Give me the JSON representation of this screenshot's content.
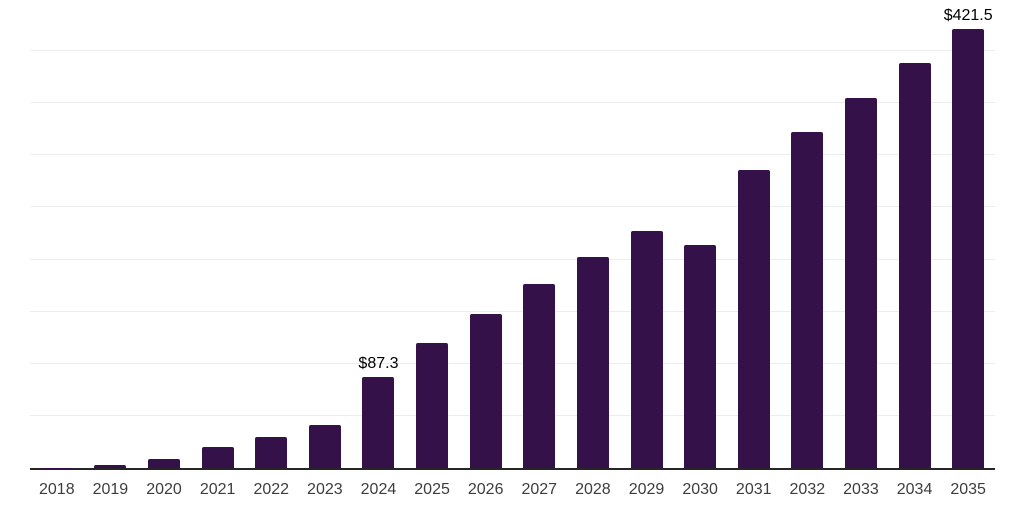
{
  "chart_data": {
    "type": "bar",
    "title": "",
    "xlabel": "",
    "ylabel": "",
    "categories": [
      "2018",
      "2019",
      "2020",
      "2021",
      "2022",
      "2023",
      "2024",
      "2025",
      "2026",
      "2027",
      "2028",
      "2029",
      "2030",
      "2031",
      "2032",
      "2033",
      "2034",
      "2035"
    ],
    "values": [
      0.4,
      3.2,
      8.9,
      19.8,
      29.8,
      41.5,
      87.3,
      120.1,
      148.2,
      176.3,
      202.4,
      227.5,
      214.2,
      286.4,
      322.8,
      354.8,
      388.8,
      421.5
    ],
    "data_labels": [
      {
        "index": 6,
        "text": "$87.3"
      },
      {
        "index": 17,
        "text": "$421.5"
      }
    ],
    "ylim": [
      0,
      450
    ],
    "gridline_step": 50,
    "grid": true,
    "legend": "none",
    "colors": {
      "bar": "#341148",
      "axis_line": "#262626",
      "gridline": "#ededed",
      "tick_label": "#3d3d3d",
      "value_label": "#000000"
    }
  }
}
